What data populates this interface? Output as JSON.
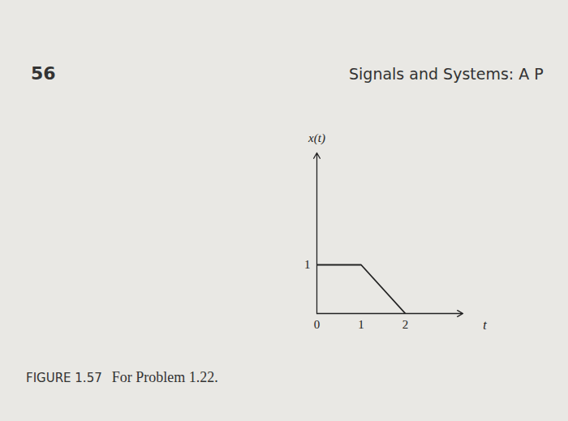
{
  "page": {
    "number": "56",
    "header": "Signals and Systems: A P",
    "caption": {
      "label": "FIGURE 1.57",
      "text": "For Problem 1.22."
    }
  },
  "chart_data": {
    "type": "line",
    "x_label": "t",
    "y_label": "x(t)",
    "x": [
      0,
      1,
      2
    ],
    "values": [
      1,
      1,
      0
    ],
    "color": "#222222",
    "xlim": [
      0,
      3.3
    ],
    "ylim": [
      0,
      3.3
    ],
    "xticks": [
      0,
      1,
      2
    ],
    "yticks": [
      1
    ],
    "grid": false
  }
}
